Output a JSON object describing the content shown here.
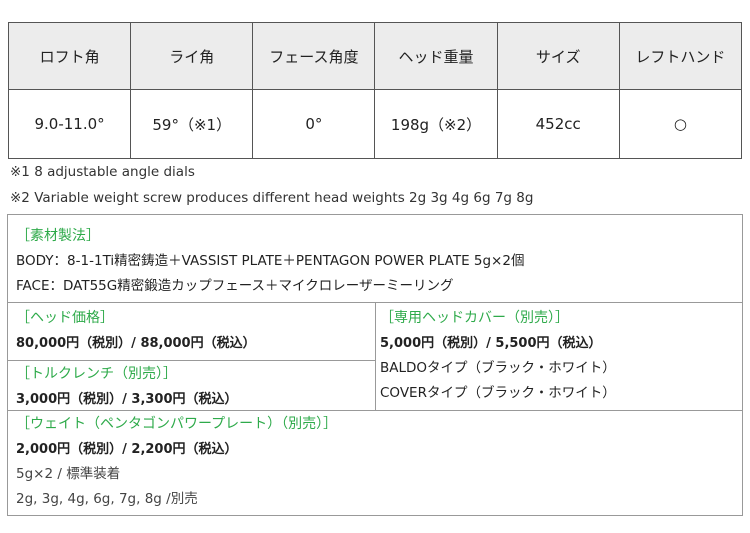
{
  "spec_table": {
    "headers": [
      "ロフト角",
      "ライ角",
      "フェース角度",
      "ヘッド重量",
      "サイズ",
      "レフトハンド"
    ],
    "values": [
      "9.0-11.0°",
      "59°（※1）",
      "0°",
      "198g（※2）",
      "452cc",
      "○"
    ]
  },
  "notes": [
    "※1 8 adjustable angle dials",
    "※2 Variable weight screw produces different head weights 2g 3g 4g 6g 7g 8g"
  ],
  "material": {
    "title": "［素材製法］",
    "body": "BODY：8-1-1Ti精密鋳造＋VASSIST PLATE＋PENTAGON POWER PLATE 5g×2個",
    "face": "FACE：DAT55G精密鍛造カップフェース＋マイクロレーザーミーリング"
  },
  "head_price": {
    "title": "［ヘッド価格］",
    "price": "80,000円（税別）/ 88,000円（税込）"
  },
  "head_cover": {
    "title": "［専用ヘッドカバー（別売）］",
    "price": "5,000円（税別）/ 5,500円（税込）",
    "types": [
      "BALDOタイプ（ブラック・ホワイト）",
      "COVERタイプ（ブラック・ホワイト）"
    ]
  },
  "torque_wrench": {
    "title": "［トルクレンチ（別売）］",
    "price": "3,000円（税別）/ 3,300円（税込）"
  },
  "weight": {
    "title": "［ウェイト（ペンタゴンパワープレート）（別売）］",
    "price": "2,000円（税別）/ 2,200円（税込）",
    "lines": [
      "5g×2 / 標準装着",
      "2g, 3g, 4g, 6g, 7g, 8g /別売"
    ]
  }
}
